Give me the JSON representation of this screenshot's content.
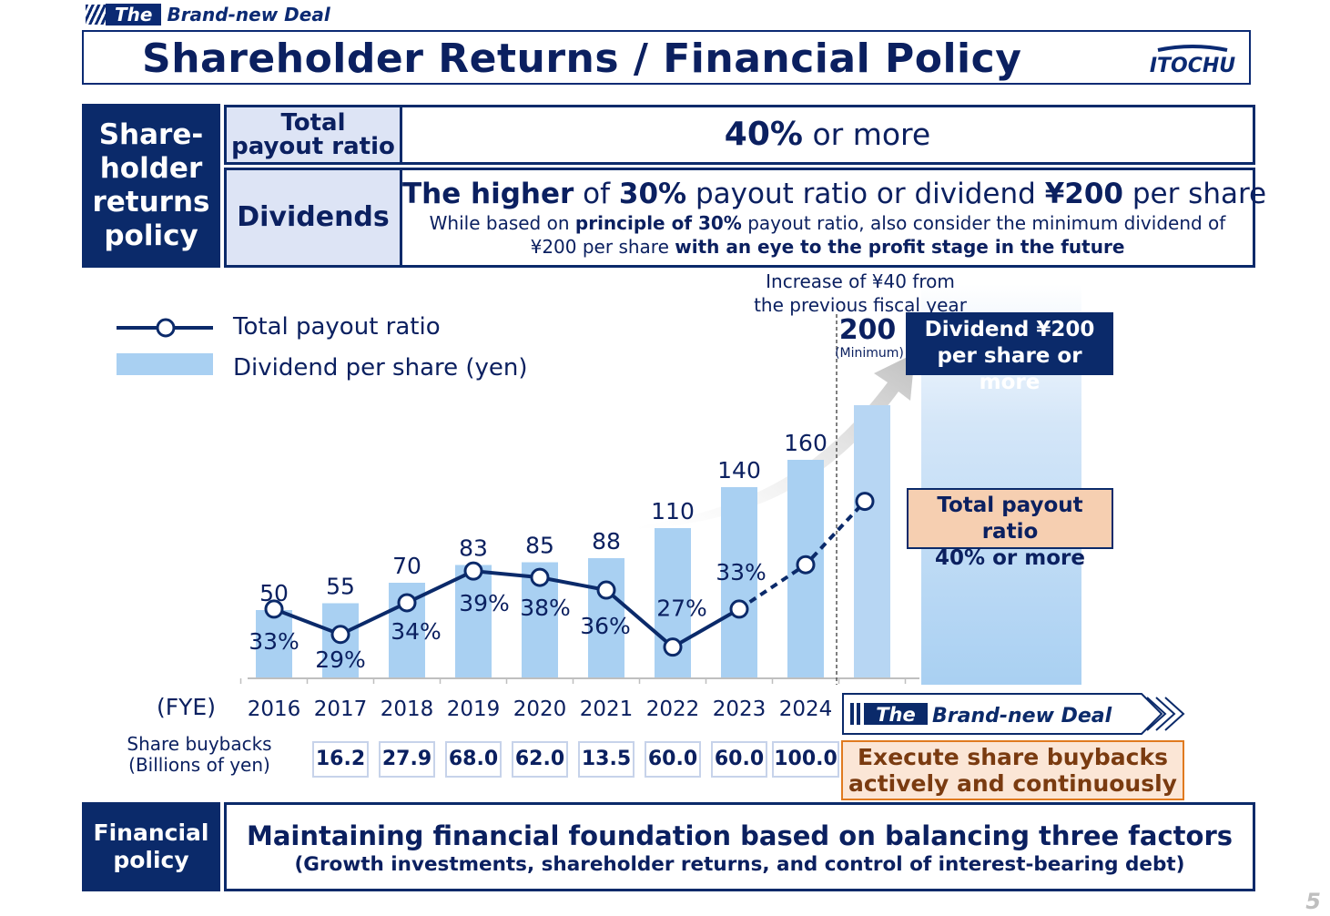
{
  "header": {
    "tag_the": "The",
    "tag_deal": "Brand-new Deal",
    "title": "Shareholder Returns / Financial Policy",
    "logo_text": "ITOCHU"
  },
  "policy": {
    "section_label": "Share-\nholder\nreturns\npolicy",
    "payout_label": "Total\npayout ratio",
    "payout_value_bold": "40%",
    "payout_value_rest": " or more",
    "dividends_label": "Dividends",
    "div_line1_bold1": "The higher",
    "div_line1_t1": " of ",
    "div_line1_bold2": "30%",
    "div_line1_t2": " payout ratio or dividend ",
    "div_line1_bold3": "¥200",
    "div_line1_t3": " per share",
    "div_line2_t1": "While based on ",
    "div_line2_bold1": "principle of 30%",
    "div_line2_t2": " payout ratio, also consider  the minimum dividend of",
    "div_line3_t1": "¥200 per share ",
    "div_line3_bold1": "with an eye to the profit stage in the future"
  },
  "legend": {
    "line_label": "Total payout ratio",
    "bar_label": "Dividend per share (yen)"
  },
  "annotations": {
    "increase_line1": "Increase of ¥40 from",
    "increase_line2": "the previous fiscal year",
    "minimum": "(Minimum)",
    "dividend_box_line1": "Dividend ¥200",
    "dividend_box_line2": "per share or more",
    "payout_box_line1": "Total payout ratio",
    "payout_box_line2": "40% or more",
    "fye": "(FYE)"
  },
  "chart_data": {
    "type": "bar",
    "categories": [
      "2016",
      "2017",
      "2018",
      "2019",
      "2020",
      "2021",
      "2022",
      "2023",
      "2024",
      ""
    ],
    "series": [
      {
        "name": "Dividend per share (yen)",
        "type": "bar",
        "values": [
          50,
          55,
          70,
          83,
          85,
          88,
          110,
          140,
          160,
          200
        ],
        "labels": [
          "50",
          "55",
          "70",
          "83",
          "85",
          "88",
          "110",
          "140",
          "160",
          "200"
        ]
      },
      {
        "name": "Total payout ratio",
        "type": "line",
        "values": [
          33,
          29,
          34,
          39,
          38,
          36,
          27,
          33,
          null,
          null
        ],
        "labels": [
          "33%",
          "29%",
          "34%",
          "39%",
          "38%",
          "36%",
          "27%",
          "33%",
          "",
          ""
        ]
      }
    ],
    "line_projection": [
      33,
      40,
      50
    ],
    "bar_ylim": [
      0,
      215
    ],
    "line_ylim": [
      0,
      60
    ]
  },
  "buybacks": {
    "label_line1": "Share buybacks",
    "label_line2": "(Billions of yen)",
    "values": [
      "16.2",
      "27.9",
      "68.0",
      "62.0",
      "13.5",
      "60.0",
      "60.0",
      "100.0"
    ]
  },
  "deal_banner": {
    "the": "The",
    "deal": "Brand-new Deal",
    "execute_line1": "Execute share buybacks",
    "execute_line2": "actively and continuously"
  },
  "financial": {
    "label": "Financial\npolicy",
    "line1": "Maintaining financial foundation based on balancing three factors",
    "line2": "(Growth investments, shareholder returns, and control of interest-bearing debt)"
  },
  "page_number": "5"
}
